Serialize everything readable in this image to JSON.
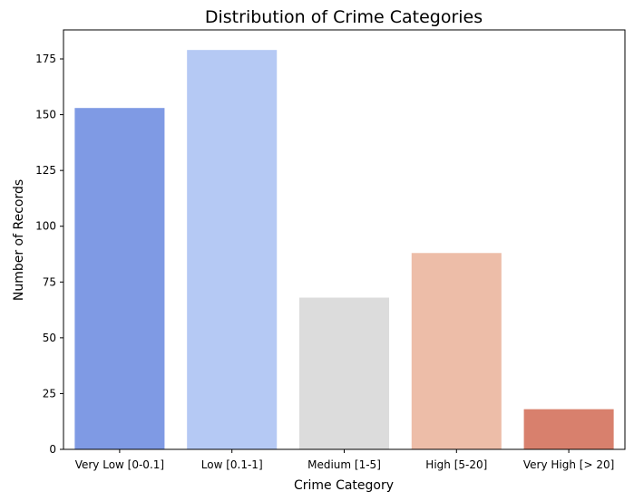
{
  "chart_data": {
    "type": "bar",
    "title": "Distribution of Crime Categories",
    "xlabel": "Crime Category",
    "ylabel": "Number of Records",
    "categories": [
      "Very Low [0-0.1]",
      "Low [0.1-1]",
      "Medium [1-5]",
      "High [5-20]",
      "Very High [> 20]"
    ],
    "values": [
      153,
      179,
      68,
      88,
      18
    ],
    "colors": [
      "#7f9ae4",
      "#b5c9f4",
      "#dcdcdc",
      "#edbda8",
      "#d8806d"
    ],
    "ylim": [
      0,
      188
    ],
    "yticks": [
      0,
      25,
      50,
      75,
      100,
      125,
      150,
      175
    ],
    "grid": false,
    "legend": "none"
  }
}
